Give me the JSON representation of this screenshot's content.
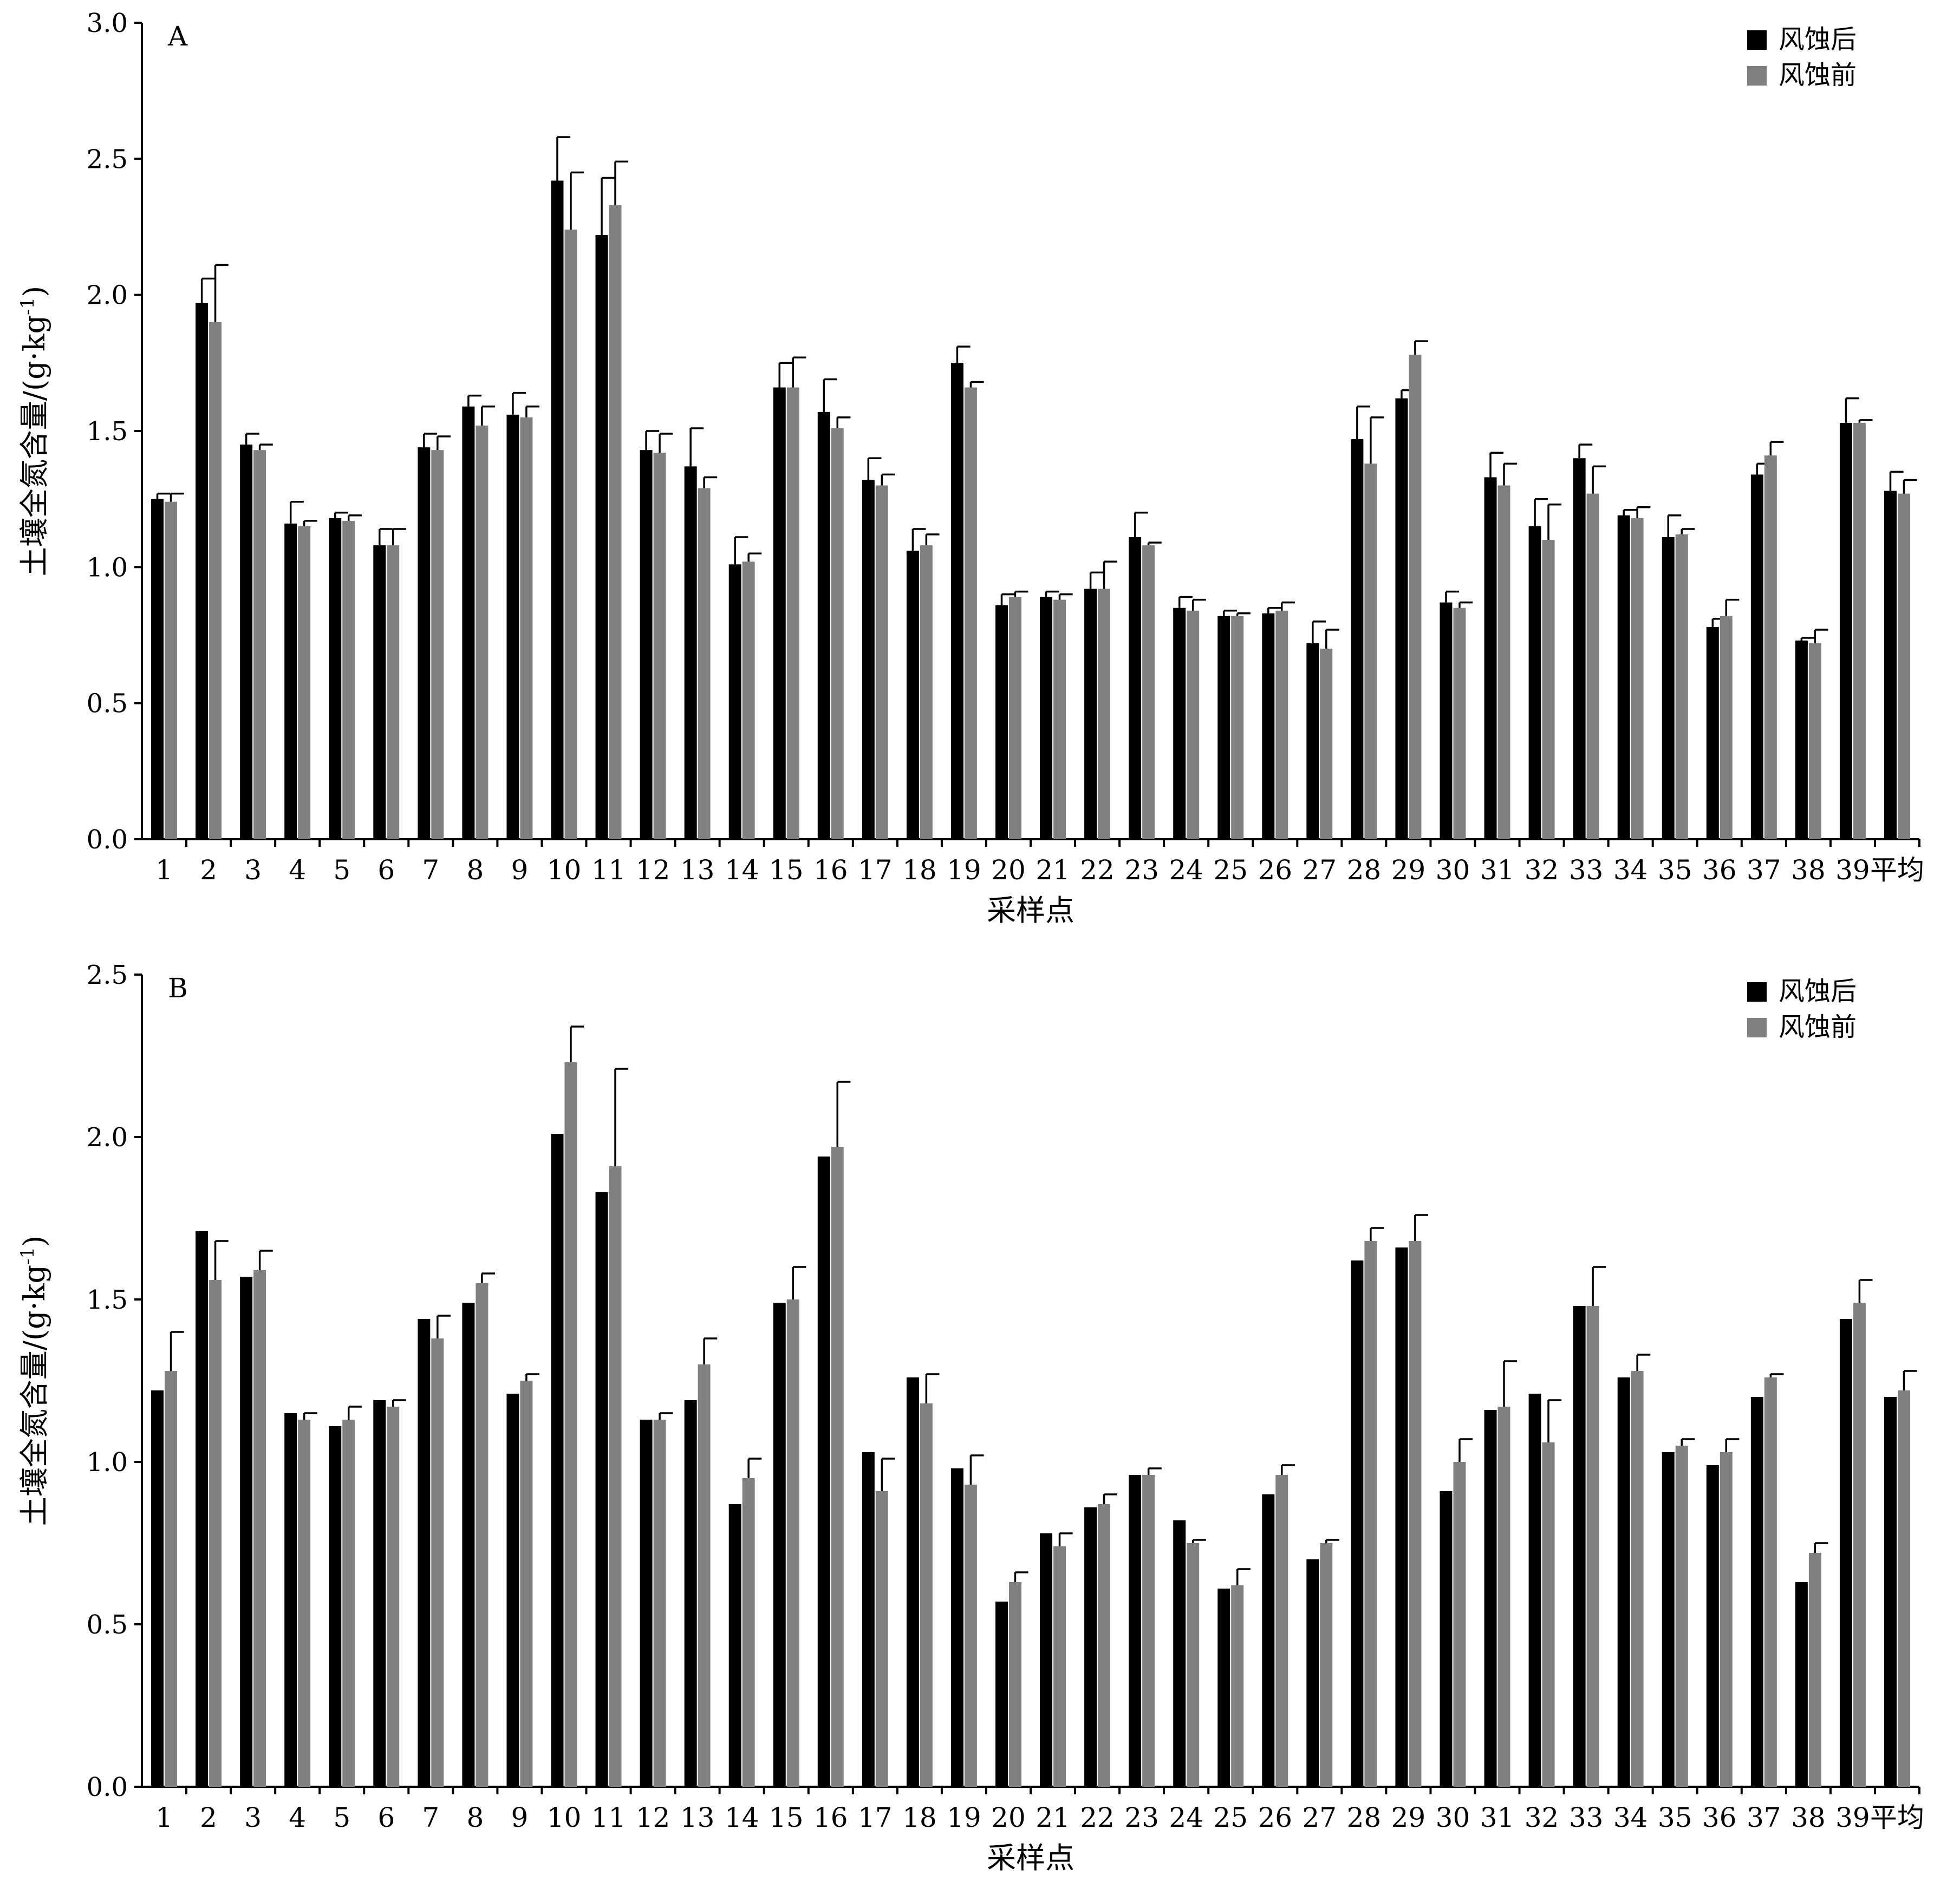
{
  "chart_data": [
    {
      "type": "bar",
      "panel_label": "A",
      "ylabel": "土壤全氮含量/(g·kg-1)",
      "xlabel": "采样点",
      "ylim": [
        0,
        3.0
      ],
      "yticks": [
        "0.0",
        "0.5",
        "1.0",
        "1.5",
        "2.0",
        "2.5",
        "3.0"
      ],
      "categories": [
        "1",
        "2",
        "3",
        "4",
        "5",
        "6",
        "7",
        "8",
        "9",
        "10",
        "11",
        "12",
        "13",
        "14",
        "15",
        "16",
        "17",
        "18",
        "19",
        "20",
        "21",
        "22",
        "23",
        "24",
        "25",
        "26",
        "27",
        "28",
        "29",
        "30",
        "31",
        "32",
        "33",
        "34",
        "35",
        "36",
        "37",
        "38",
        "39",
        "平均"
      ],
      "legend": "top-right",
      "grid": false,
      "series": [
        {
          "name": "风蚀后",
          "color": "#000000",
          "values": [
            1.25,
            1.97,
            1.45,
            1.16,
            1.18,
            1.08,
            1.44,
            1.59,
            1.56,
            2.42,
            2.22,
            1.43,
            1.37,
            1.01,
            1.66,
            1.57,
            1.32,
            1.06,
            1.75,
            0.86,
            0.89,
            0.92,
            1.11,
            0.85,
            0.82,
            0.83,
            0.72,
            1.47,
            1.62,
            0.87,
            1.33,
            1.15,
            1.4,
            1.19,
            1.11,
            0.78,
            1.34,
            0.73,
            1.53,
            1.28
          ],
          "errors": [
            0.02,
            0.09,
            0.04,
            0.08,
            0.02,
            0.06,
            0.05,
            0.04,
            0.08,
            0.16,
            0.21,
            0.07,
            0.14,
            0.1,
            0.09,
            0.12,
            0.08,
            0.08,
            0.06,
            0.04,
            0.02,
            0.06,
            0.09,
            0.04,
            0.02,
            0.02,
            0.08,
            0.12,
            0.03,
            0.04,
            0.09,
            0.1,
            0.05,
            0.02,
            0.08,
            0.03,
            0.04,
            0.01,
            0.09,
            0.07
          ]
        },
        {
          "name": "风蚀前",
          "color": "#808080",
          "values": [
            1.24,
            1.9,
            1.43,
            1.15,
            1.17,
            1.08,
            1.43,
            1.52,
            1.55,
            2.24,
            2.33,
            1.42,
            1.29,
            1.02,
            1.66,
            1.51,
            1.3,
            1.08,
            1.66,
            0.89,
            0.88,
            0.92,
            1.08,
            0.84,
            0.82,
            0.84,
            0.7,
            1.38,
            1.78,
            0.85,
            1.3,
            1.1,
            1.27,
            1.18,
            1.12,
            0.82,
            1.41,
            0.72,
            1.53,
            1.27
          ],
          "errors": [
            0.03,
            0.21,
            0.02,
            0.02,
            0.02,
            0.06,
            0.05,
            0.07,
            0.04,
            0.21,
            0.16,
            0.07,
            0.04,
            0.03,
            0.11,
            0.04,
            0.04,
            0.04,
            0.02,
            0.02,
            0.02,
            0.1,
            0.01,
            0.04,
            0.01,
            0.03,
            0.07,
            0.17,
            0.05,
            0.02,
            0.08,
            0.13,
            0.1,
            0.04,
            0.02,
            0.06,
            0.05,
            0.05,
            0.01,
            0.05
          ]
        }
      ]
    },
    {
      "type": "bar",
      "panel_label": "B",
      "ylabel": "土壤全氮含量/(g·kg-1)",
      "xlabel": "采样点",
      "ylim": [
        0,
        2.5
      ],
      "yticks": [
        "0.0",
        "0.5",
        "1.0",
        "1.5",
        "2.0",
        "2.5"
      ],
      "categories": [
        "1",
        "2",
        "3",
        "4",
        "5",
        "6",
        "7",
        "8",
        "9",
        "10",
        "11",
        "12",
        "13",
        "14",
        "15",
        "16",
        "17",
        "18",
        "19",
        "20",
        "21",
        "22",
        "23",
        "24",
        "25",
        "26",
        "27",
        "28",
        "29",
        "30",
        "31",
        "32",
        "33",
        "34",
        "35",
        "36",
        "37",
        "38",
        "39",
        "平均"
      ],
      "legend": "top-right",
      "grid": false,
      "series": [
        {
          "name": "风蚀后",
          "color": "#000000",
          "values": [
            1.22,
            1.71,
            1.57,
            1.15,
            1.11,
            1.19,
            1.44,
            1.49,
            1.21,
            2.01,
            1.83,
            1.13,
            1.19,
            0.87,
            1.49,
            1.94,
            1.03,
            1.26,
            0.98,
            0.57,
            0.78,
            0.86,
            0.96,
            0.82,
            0.61,
            0.9,
            0.7,
            1.62,
            1.66,
            0.91,
            1.16,
            1.21,
            1.48,
            1.26,
            1.03,
            0.99,
            1.2,
            0.63,
            1.44,
            1.2
          ]
        },
        {
          "name": "风蚀前",
          "color": "#808080",
          "values": [
            1.28,
            1.56,
            1.59,
            1.13,
            1.13,
            1.17,
            1.38,
            1.55,
            1.25,
            2.23,
            1.91,
            1.13,
            1.3,
            0.95,
            1.5,
            1.97,
            0.91,
            1.18,
            0.93,
            0.63,
            0.74,
            0.87,
            0.96,
            0.75,
            0.62,
            0.96,
            0.75,
            1.68,
            1.68,
            1.0,
            1.17,
            1.06,
            1.48,
            1.28,
            1.05,
            1.03,
            1.26,
            0.72,
            1.49,
            1.22
          ],
          "errors": [
            0.12,
            0.12,
            0.06,
            0.02,
            0.04,
            0.02,
            0.07,
            0.03,
            0.02,
            0.11,
            0.3,
            0.02,
            0.08,
            0.06,
            0.1,
            0.2,
            0.1,
            0.09,
            0.09,
            0.03,
            0.04,
            0.03,
            0.02,
            0.01,
            0.05,
            0.03,
            0.01,
            0.04,
            0.08,
            0.07,
            0.14,
            0.13,
            0.12,
            0.05,
            0.02,
            0.04,
            0.01,
            0.03,
            0.07,
            0.06
          ]
        }
      ]
    }
  ]
}
